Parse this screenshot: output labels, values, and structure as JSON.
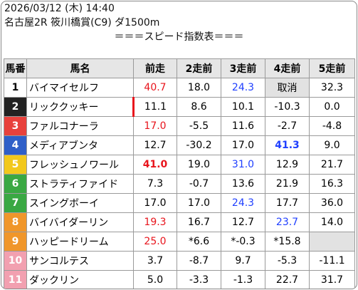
{
  "header": {
    "datetime": "2026/03/12 (木) 14:40",
    "race": "名古屋2R 筱川橋賞(C9) ダ1500m",
    "title": "＝＝＝スピード指数表＝＝＝"
  },
  "table": {
    "columns": [
      "馬番",
      "馬名",
      "前走",
      "2走前",
      "3走前",
      "4走前",
      "5走前"
    ],
    "rows": [
      {
        "num": "1",
        "frame": "#ffffff",
        "frame_text": "#000000",
        "name": "バイマイセルフ",
        "values": [
          "40.7",
          "18.0",
          "24.3",
          "取消",
          "32.3"
        ],
        "colors": [
          "#e8141c",
          null,
          "#1f3fff",
          null,
          null
        ],
        "bold": [],
        "shaded": [
          3
        ],
        "marked": []
      },
      {
        "num": "2",
        "frame": "#222222",
        "frame_text": "#ffffff",
        "name": "リッククッキー",
        "values": [
          "11.1",
          "8.6",
          "10.1",
          "-10.3",
          "0.0"
        ],
        "colors": [
          null,
          null,
          null,
          null,
          null
        ],
        "bold": [],
        "shaded": [],
        "marked": [
          0
        ]
      },
      {
        "num": "3",
        "frame": "#e8413c",
        "frame_text": "#ffffff",
        "name": "ファルコナーラ",
        "values": [
          "17.0",
          "-5.5",
          "11.6",
          "-2.7",
          "-4.8"
        ],
        "colors": [
          "#e8141c",
          null,
          null,
          null,
          null
        ],
        "bold": [],
        "shaded": [],
        "marked": []
      },
      {
        "num": "4",
        "frame": "#2f5fc8",
        "frame_text": "#ffffff",
        "name": "メディアブンタ",
        "values": [
          "12.7",
          "-30.2",
          "17.0",
          "41.3",
          "9.0"
        ],
        "colors": [
          null,
          null,
          null,
          "#1f3fff",
          null
        ],
        "bold": [
          3
        ],
        "shaded": [],
        "marked": []
      },
      {
        "num": "5",
        "frame": "#f2c81c",
        "frame_text": "#ffffff",
        "name": "フレッシュノワール",
        "values": [
          "41.0",
          "19.0",
          "31.0",
          "12.9",
          "21.7"
        ],
        "colors": [
          "#e8141c",
          null,
          "#1f3fff",
          null,
          null
        ],
        "bold": [
          0
        ],
        "shaded": [],
        "marked": []
      },
      {
        "num": "6",
        "frame": "#3aa843",
        "frame_text": "#ffffff",
        "name": "ストラティファイド",
        "values": [
          "7.3",
          "-0.7",
          "13.6",
          "21.9",
          "16.3"
        ],
        "colors": [
          null,
          null,
          null,
          null,
          null
        ],
        "bold": [],
        "shaded": [],
        "marked": []
      },
      {
        "num": "7",
        "frame": "#3aa843",
        "frame_text": "#ffffff",
        "name": "スイングボーイ",
        "values": [
          "17.0",
          "17.0",
          "24.3",
          "17.7",
          "36.0"
        ],
        "colors": [
          null,
          null,
          "#1f3fff",
          null,
          null
        ],
        "bold": [],
        "shaded": [],
        "marked": []
      },
      {
        "num": "8",
        "frame": "#f0962a",
        "frame_text": "#ffffff",
        "name": "バイバイダーリン",
        "values": [
          "19.3",
          "16.7",
          "12.7",
          "23.7",
          "14.0"
        ],
        "colors": [
          "#e8141c",
          null,
          null,
          "#1f3fff",
          null
        ],
        "bold": [],
        "shaded": [],
        "marked": []
      },
      {
        "num": "9",
        "frame": "#f0962a",
        "frame_text": "#ffffff",
        "name": "ハッピードリーム",
        "values": [
          "25.0",
          "*6.6",
          "*-0.3",
          "*15.8",
          null
        ],
        "colors": [
          "#e8141c",
          null,
          null,
          null,
          null
        ],
        "bold": [],
        "shaded": [
          4
        ],
        "marked": []
      },
      {
        "num": "10",
        "frame": "#f2a0b0",
        "frame_text": "#ffffff",
        "name": "サンコルテス",
        "values": [
          "3.7",
          "-8.7",
          "9.7",
          "-5.3",
          "-11.1"
        ],
        "colors": [
          null,
          null,
          null,
          null,
          null
        ],
        "bold": [],
        "shaded": [],
        "marked": []
      },
      {
        "num": "11",
        "frame": "#f2a0b0",
        "frame_text": "#ffffff",
        "name": "ダックリン",
        "values": [
          "5.0",
          "-3.3",
          "-1.3",
          "22.7",
          "31.7"
        ],
        "colors": [
          null,
          null,
          null,
          null,
          null
        ],
        "bold": [],
        "shaded": [],
        "marked": []
      }
    ]
  }
}
